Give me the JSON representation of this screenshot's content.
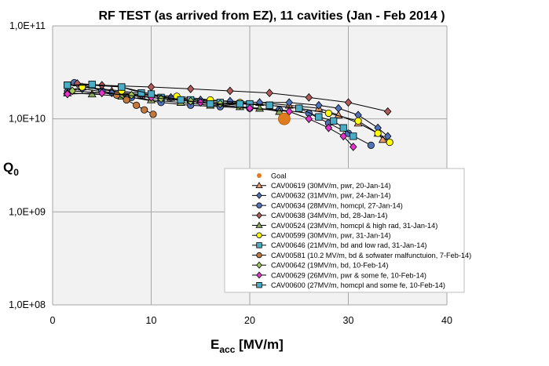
{
  "chart_data": {
    "type": "scatter",
    "title": "RF TEST (as arrived from EZ), 11 cavities (Jan - Feb 2014 )",
    "xlabel": "E",
    "xlabel_sub": "acc",
    "xlabel_unit": " [MV/m]",
    "ylabel": "Q",
    "ylabel_sub": "0",
    "xlim": [
      0,
      40
    ],
    "ylim": [
      100000000.0,
      100000000000.0
    ],
    "y_scale": "log",
    "x_ticks": [
      "0",
      "10",
      "20",
      "30",
      "40"
    ],
    "y_ticks": [
      "1,0E+08",
      "1,0E+09",
      "1,0E+10",
      "1,0E+11"
    ],
    "grid": true,
    "legend_position": "lower-right",
    "goal": {
      "name": "Goal",
      "x": 23.5,
      "y": 10000000000.0,
      "color": "#e07b1f"
    },
    "series": [
      {
        "name": "CAV00619 (30MV/m, pwr, 20-Jan-14)",
        "color": "#e59a6e",
        "marker": "triangle",
        "x": [
          1.5,
          3,
          6,
          9,
          12,
          15,
          18,
          21,
          24,
          27,
          29,
          31,
          33,
          33.5
        ],
        "y": [
          20000000000.0,
          22000000000.0,
          20000000000.0,
          18000000000.0,
          17000000000.0,
          16000000000.0,
          15500000000.0,
          15000000000.0,
          14000000000.0,
          13000000000.0,
          11000000000.0,
          9000000000.0,
          7000000000.0,
          6000000000.0
        ]
      },
      {
        "name": "CAV00632 (31MV/m, pwr, 24-Jan-14)",
        "color": "#4f72b8",
        "marker": "diamond",
        "x": [
          1.5,
          3,
          6,
          9,
          12,
          15,
          18,
          21,
          24,
          27,
          29,
          31,
          33,
          34
        ],
        "y": [
          20000000000.0,
          21000000000.0,
          19000000000.0,
          18000000000.0,
          17000000000.0,
          16000000000.0,
          15500000000.0,
          15000000000.0,
          15000000000.0,
          14000000000.0,
          13000000000.0,
          11000000000.0,
          8000000000.0,
          6500000000.0
        ]
      },
      {
        "name": "CAV00634 (28MV/m, homcpl, 27-Jan-14)",
        "color": "#4f72b8",
        "marker": "circle",
        "x": [
          2.2,
          5,
          8,
          11,
          14,
          17,
          20,
          23,
          26,
          28,
          30,
          32.3
        ],
        "y": [
          24500000000.0,
          20000000000.0,
          17000000000.0,
          15000000000.0,
          14000000000.0,
          13500000000.0,
          13000000000.0,
          12500000000.0,
          11500000000.0,
          9000000000.0,
          7000000000.0,
          5200000000.0
        ]
      },
      {
        "name": "CAV00638 (34MV/m, bd, 28-Jan-14)",
        "color": "#b05a5a",
        "marker": "diamond",
        "x": [
          2.5,
          5,
          10,
          14,
          18,
          22,
          26,
          30,
          34
        ],
        "y": [
          24000000000.0,
          23000000000.0,
          22000000000.0,
          21000000000.0,
          20000000000.0,
          19000000000.0,
          17000000000.0,
          15000000000.0,
          12000000000.0
        ]
      },
      {
        "name": "CAV00524 (23MV/m, homcpl & high rad, 31-Jan-14)",
        "color": "#8aa65a",
        "marker": "triangle",
        "x": [
          1.5,
          4,
          7,
          10,
          13,
          16,
          19,
          21,
          23
        ],
        "y": [
          19000000000.0,
          18500000000.0,
          17500000000.0,
          16000000000.0,
          15000000000.0,
          14000000000.0,
          13500000000.0,
          13000000000.0,
          12000000000.0
        ]
      },
      {
        "name": "CAV00599 (30MV/m, pwr, 31-Jan-14)",
        "color": "#ffff00",
        "marker": "circle",
        "x": [
          3,
          7,
          10,
          12.6,
          16,
          19,
          22,
          25,
          28,
          31,
          33,
          34.2
        ],
        "y": [
          22000000000.0,
          20000000000.0,
          18000000000.0,
          17500000000.0,
          16000000000.0,
          15000000000.0,
          14000000000.0,
          13000000000.0,
          11500000000.0,
          9500000000.0,
          7000000000.0,
          5600000000.0
        ]
      },
      {
        "name": "CAV00646 (21MV/m, bd and low rad, 31-Jan-14)",
        "color": "#4bacc6",
        "marker": "square",
        "x": [
          1.5,
          4,
          7,
          9,
          11,
          14,
          17,
          20,
          22
        ],
        "y": [
          23000000000.0,
          23000000000.0,
          22000000000.0,
          19000000000.0,
          17000000000.0,
          16000000000.0,
          15000000000.0,
          14500000000.0,
          14000000000.0
        ]
      },
      {
        "name": "CAV00581 (10.2 MV/m, bd & sofwater malfunctuion, 7-Feb-14)",
        "color": "#c07a3f",
        "marker": "circle",
        "x": [
          6.5,
          7.5,
          8.5,
          9.3,
          10.2
        ],
        "y": [
          18000000000.0,
          16000000000.0,
          14000000000.0,
          12500000000.0,
          11200000000.0
        ]
      },
      {
        "name": "CAV00642 (19MV/m, bd, 10-Feb-14)",
        "color": "#a6c85a",
        "marker": "diamond",
        "x": [
          2,
          5,
          8,
          11,
          14,
          17,
          19
        ],
        "y": [
          20000000000.0,
          19000000000.0,
          18000000000.0,
          16500000000.0,
          15500000000.0,
          14500000000.0,
          14000000000.0
        ]
      },
      {
        "name": "CAV00629 (26MV/m, pwr & some fe, 10-Feb-14)",
        "color": "#e633cc",
        "marker": "diamond",
        "x": [
          1.5,
          5,
          10,
          15,
          20,
          24,
          26,
          28,
          29.5,
          30.5
        ],
        "y": [
          18500000000.0,
          19000000000.0,
          17000000000.0,
          15000000000.0,
          13000000000.0,
          12000000000.0,
          10000000000.0,
          8000000000.0,
          6500000000.0,
          5000000000.0
        ]
      },
      {
        "name": "CAV00600 (27MV/m, homcpl and some fe, 10-Feb-14)",
        "color": "#4bacc6",
        "marker": "square",
        "x": [
          1.5,
          4,
          7,
          10,
          13,
          16,
          19,
          22,
          25,
          27,
          28.5,
          29.5,
          30.5
        ],
        "y": [
          23000000000.0,
          23500000000.0,
          22000000000.0,
          18500000000.0,
          16000000000.0,
          14500000000.0,
          14500000000.0,
          14000000000.0,
          13000000000.0,
          10500000000.0,
          9500000000.0,
          8000000000.0,
          6500000000.0
        ]
      }
    ]
  }
}
